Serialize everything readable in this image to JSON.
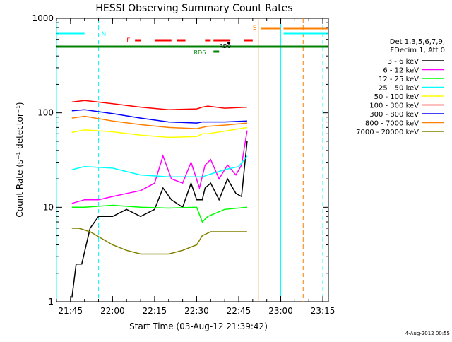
{
  "chart_data": {
    "type": "line",
    "title": "HESSI Observing Summary Count Rates",
    "xlabel": "Start Time (03-Aug-12 21:39:42)",
    "ylabel": "Count Rate (s⁻¹ detector⁻¹)",
    "footer_date": "4-Aug-2012 00:55",
    "y_scale": "log",
    "ylim": [
      1,
      1000
    ],
    "xlim": [
      "21:40",
      "23:17"
    ],
    "x_ticks": [
      "21:45",
      "22:00",
      "22:15",
      "22:30",
      "22:45",
      "23:00",
      "23:15"
    ],
    "y_ticks": [
      "1",
      "10",
      "100",
      "1000"
    ],
    "grid": false,
    "legend_position": "right",
    "legend_header": [
      "Det 1,3,5,6,7,9,",
      "FDecim 1, Att 0"
    ],
    "flag_labels": [
      "N",
      "F",
      "RD0",
      "RD6",
      "S"
    ],
    "series": [
      {
        "name": "3 - 6 keV",
        "color": "#000000",
        "x": [
          "21:45:30",
          "21:47:00",
          "21:49:00",
          "21:52:00",
          "21:55:00",
          "22:00:00",
          "22:05:00",
          "22:10:00",
          "22:15:00",
          "22:18:00",
          "22:21:00",
          "22:25:00",
          "22:28:00",
          "22:30:00",
          "22:32:00",
          "22:33:00",
          "22:35:00",
          "22:38:00",
          "22:41:00",
          "22:44:00",
          "22:46:00",
          "22:48:00"
        ],
        "y": [
          1.1,
          2.5,
          2.5,
          6,
          8,
          8,
          9.5,
          8,
          9.5,
          16,
          12,
          10,
          18,
          12,
          12,
          16,
          18,
          12,
          20,
          14,
          13,
          50
        ]
      },
      {
        "name": "6 - 12 keV",
        "color": "#ff00ff",
        "x": [
          "21:45:30",
          "21:50:00",
          "21:55:00",
          "22:00:00",
          "22:05:00",
          "22:10:00",
          "22:15:00",
          "22:18:00",
          "22:21:00",
          "22:25:00",
          "22:28:00",
          "22:31:00",
          "22:33:00",
          "22:35:00",
          "22:38:00",
          "22:41:00",
          "22:44:00",
          "22:46:00",
          "22:48:00"
        ],
        "y": [
          11,
          12,
          12,
          13,
          14,
          15,
          18,
          35,
          20,
          18,
          30,
          16,
          28,
          32,
          20,
          28,
          22,
          28,
          65
        ]
      },
      {
        "name": "12 - 25 keV",
        "color": "#00ff00",
        "x": [
          "21:45:30",
          "21:50:00",
          "22:00:00",
          "22:10:00",
          "22:20:00",
          "22:30:00",
          "22:32:00",
          "22:34:00",
          "22:40:00",
          "22:48:00"
        ],
        "y": [
          10,
          10,
          10.5,
          10,
          9.8,
          10,
          7,
          8,
          9.5,
          10
        ]
      },
      {
        "name": "25 - 50 keV",
        "color": "#00ffff",
        "x": [
          "21:45:30",
          "21:50:00",
          "22:00:00",
          "22:10:00",
          "22:20:00",
          "22:30:00",
          "22:32:00",
          "22:34:00",
          "22:40:00",
          "22:45:00",
          "22:48:00"
        ],
        "y": [
          25,
          27,
          26,
          22,
          21,
          21,
          21,
          22,
          25,
          27,
          35
        ]
      },
      {
        "name": "50 - 100 keV",
        "color": "#ffff00",
        "x": [
          "21:45:30",
          "21:50:00",
          "22:00:00",
          "22:10:00",
          "22:20:00",
          "22:30:00",
          "22:32:00",
          "22:34:00",
          "22:40:00",
          "22:48:00"
        ],
        "y": [
          62,
          66,
          63,
          58,
          55,
          56,
          60,
          60,
          64,
          70
        ]
      },
      {
        "name": "100 - 300 keV",
        "color": "#ff0000",
        "x": [
          "21:45:30",
          "21:50:00",
          "22:00:00",
          "22:10:00",
          "22:20:00",
          "22:30:00",
          "22:32:00",
          "22:34:00",
          "22:40:00",
          "22:48:00"
        ],
        "y": [
          130,
          135,
          125,
          115,
          108,
          110,
          115,
          118,
          112,
          115
        ]
      },
      {
        "name": "300 - 800 keV",
        "color": "#0000ff",
        "x": [
          "21:45:30",
          "21:50:00",
          "22:00:00",
          "22:10:00",
          "22:20:00",
          "22:30:00",
          "22:32:00",
          "22:34:00",
          "22:40:00",
          "22:48:00"
        ],
        "y": [
          105,
          108,
          98,
          88,
          80,
          78,
          80,
          80,
          80,
          82
        ]
      },
      {
        "name": "800 - 7000 keV",
        "color": "#ff8000",
        "x": [
          "21:45:30",
          "21:50:00",
          "22:00:00",
          "22:10:00",
          "22:20:00",
          "22:30:00",
          "22:32:00",
          "22:34:00",
          "22:40:00",
          "22:48:00"
        ],
        "y": [
          88,
          92,
          82,
          75,
          70,
          68,
          70,
          72,
          74,
          78
        ]
      },
      {
        "name": "7000 - 20000 keV",
        "color": "#808000",
        "x": [
          "21:45:30",
          "21:48:00",
          "21:52:00",
          "22:00:00",
          "22:05:00",
          "22:10:00",
          "22:15:00",
          "22:20:00",
          "22:25:00",
          "22:30:00",
          "22:32:00",
          "22:35:00",
          "22:40:00",
          "22:48:00"
        ],
        "y": [
          6,
          6,
          5.5,
          4,
          3.5,
          3.2,
          3.2,
          3.2,
          3.5,
          4,
          5,
          5.5,
          5.5,
          5.5
        ]
      }
    ],
    "flag_bars": [
      {
        "label": "N",
        "color": "#00ffff",
        "segments": [
          [
            "21:40",
            "21:50"
          ],
          [
            "23:01",
            "23:17"
          ]
        ]
      },
      {
        "label": "F",
        "color": "#ff0000",
        "segments": [
          [
            "22:08",
            "22:10"
          ],
          [
            "22:15",
            "22:21"
          ],
          [
            "22:23",
            "22:26"
          ],
          [
            "22:33",
            "22:35"
          ],
          [
            "22:36",
            "22:39"
          ],
          [
            "22:39",
            "22:42"
          ],
          [
            "22:47",
            "22:50"
          ]
        ]
      },
      {
        "label": "RD0",
        "color": "#000000",
        "segments": [
          [
            "22:41",
            "22:42"
          ]
        ]
      },
      {
        "label": "RD6",
        "color": "#008000",
        "segments": [
          [
            "22:36",
            "22:38"
          ]
        ]
      },
      {
        "label": "S",
        "color": "#ff8000",
        "segments": [
          [
            "22:53",
            "23:00"
          ],
          [
            "23:01",
            "23:17"
          ]
        ]
      },
      {
        "label": "",
        "color": "#008000",
        "segments": [
          [
            "21:40",
            "23:17"
          ]
        ]
      }
    ],
    "vertical_markers": [
      {
        "time": "21:40",
        "color": "#00ffff",
        "style": "solid"
      },
      {
        "time": "21:55",
        "color": "#00ffff",
        "style": "dashed"
      },
      {
        "time": "22:52",
        "color": "#ff8000",
        "style": "solid"
      },
      {
        "time": "23:00",
        "color": "#00ffff",
        "style": "solid"
      },
      {
        "time": "23:08",
        "color": "#ff8000",
        "style": "dashed"
      },
      {
        "time": "23:15",
        "color": "#00ffff",
        "style": "dashed"
      }
    ]
  }
}
